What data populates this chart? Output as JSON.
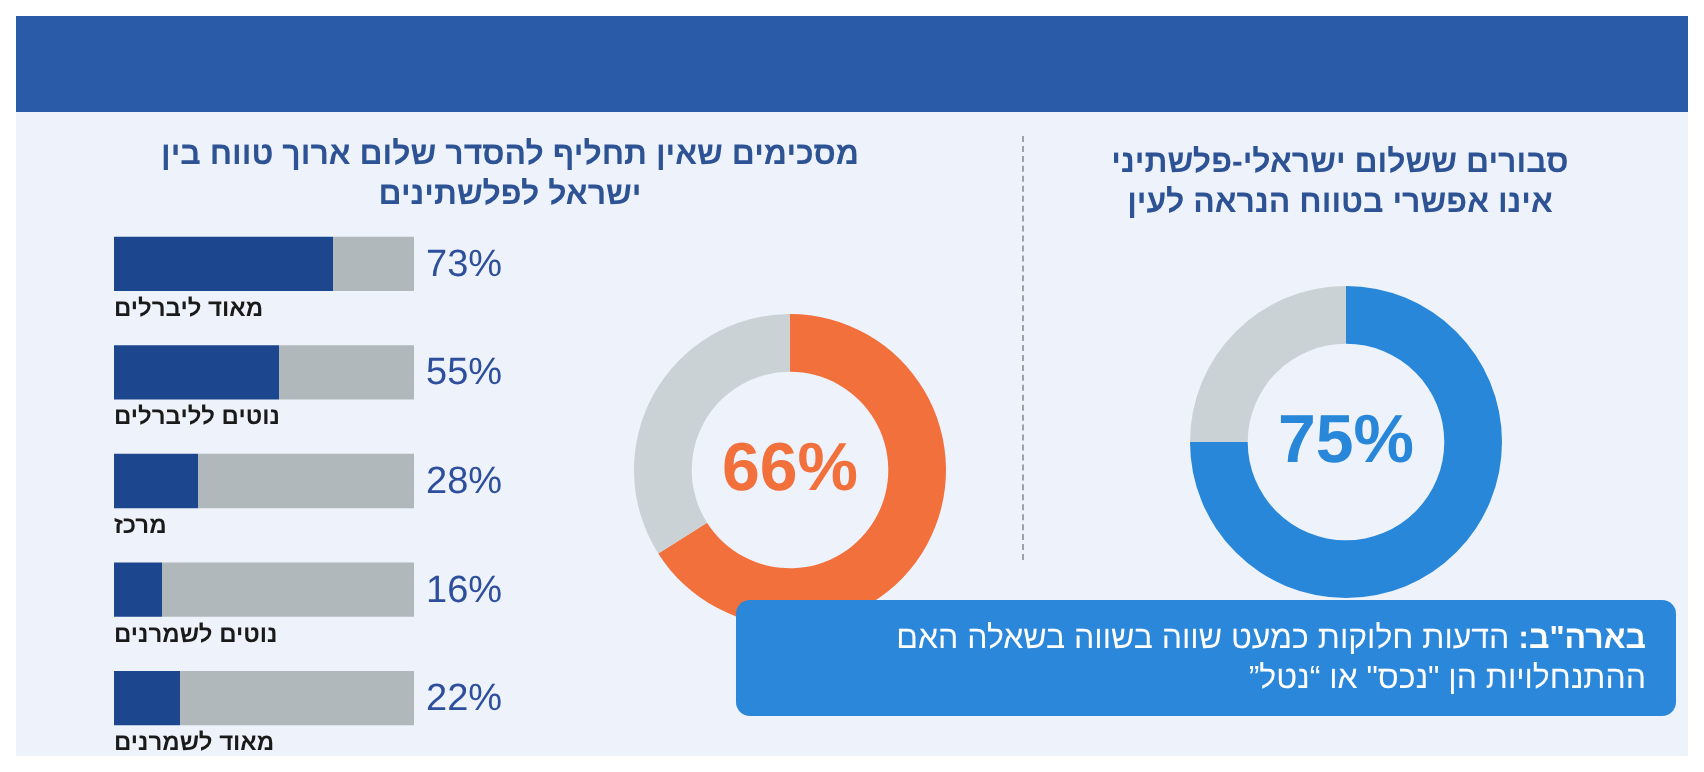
{
  "chart_data": [
    {
      "type": "bar",
      "orientation": "horizontal",
      "stacked": true,
      "title": "מסכימים שאין תחליף להסדר שלום ארוך טווח בין ישראל לפלשתינים",
      "categories": [
        "מאוד ליברלים",
        "נוטים לליברלים",
        "מרכז",
        "נוטים לשמרנים",
        "מאוד לשמרנים"
      ],
      "series": [
        {
          "color": "#1c468e",
          "values": [
            73,
            55,
            28,
            16,
            22
          ],
          "value_labels": [
            "73%",
            "55%",
            "28%",
            "16%",
            "22%"
          ]
        },
        {
          "color": "#b1b8bb",
          "values": [
            27,
            45,
            72,
            84,
            78
          ]
        }
      ]
    },
    {
      "type": "donut",
      "categories": [
        null,
        null
      ],
      "values": [
        66,
        34
      ],
      "colors": [
        "#f2703c",
        "#cbd2d6"
      ],
      "value_labels": [
        "66%",
        null
      ]
    },
    {
      "type": "donut",
      "title": "סבורים ששלום ישראלי-פלשתיני אינו אפשרי בטווח הנראה לעין",
      "categories": [
        null,
        null
      ],
      "values": [
        75,
        25
      ],
      "colors": [
        "#2887d9",
        "#cbd2d6"
      ],
      "value_labels": [
        "75%",
        null
      ],
      "annotations": [
        "בארה\"ב:",
        "הדעות חלוקות כמעט שווה בשווה בשאלה האם ההתנחלויות הן \"נכס\" או “נטל”"
      ]
    }
  ]
}
